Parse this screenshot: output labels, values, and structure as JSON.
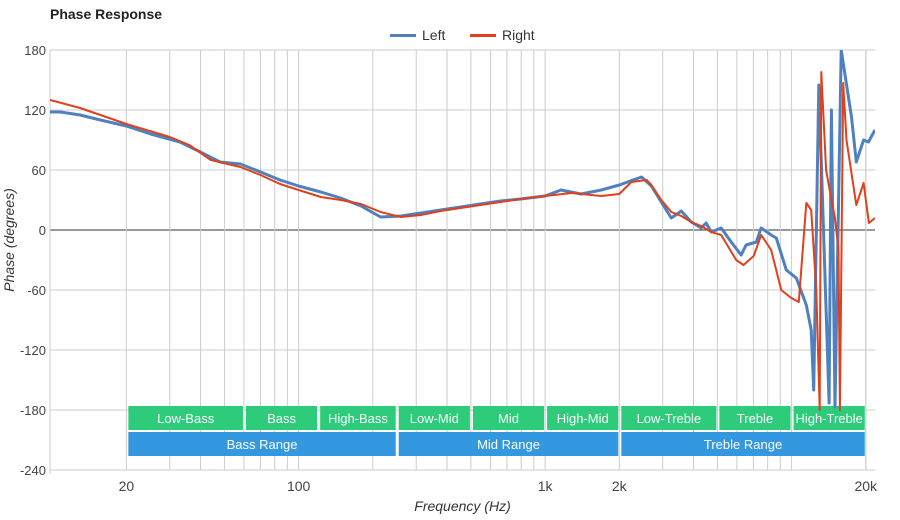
{
  "chart_data": {
    "type": "line",
    "title": "Phase Response",
    "xlabel": "Frequency (Hz)",
    "ylabel": "Phase (degrees)",
    "xscale": "log",
    "xlim": [
      9.8,
      21800
    ],
    "ylim": [
      -240,
      180
    ],
    "grid": true,
    "legend_position": "top-center",
    "x_ticks": [
      {
        "v": 20,
        "label": "20"
      },
      {
        "v": 100,
        "label": "100"
      },
      {
        "v": 1000,
        "label": "1k"
      },
      {
        "v": 2000,
        "label": "2k"
      },
      {
        "v": 20000,
        "label": "20k"
      }
    ],
    "y_ticks": [
      {
        "v": 180,
        "label": "180"
      },
      {
        "v": 120,
        "label": "120"
      },
      {
        "v": 60,
        "label": "60"
      },
      {
        "v": 0,
        "label": "0"
      },
      {
        "v": -60,
        "label": "-60"
      },
      {
        "v": -120,
        "label": "-120"
      },
      {
        "v": -180,
        "label": "-180"
      },
      {
        "v": -240,
        "label": "-240"
      }
    ],
    "series": [
      {
        "name": "Left",
        "color": "#4e81bd",
        "points": [
          [
            9.8,
            118
          ],
          [
            10.8,
            118
          ],
          [
            13,
            115
          ],
          [
            15.7,
            110
          ],
          [
            20,
            104
          ],
          [
            25.1,
            96
          ],
          [
            33,
            88
          ],
          [
            39.9,
            78
          ],
          [
            48,
            68
          ],
          [
            58,
            66
          ],
          [
            70,
            58
          ],
          [
            84,
            50
          ],
          [
            100,
            44
          ],
          [
            123,
            38
          ],
          [
            148,
            32
          ],
          [
            179,
            24
          ],
          [
            215,
            13
          ],
          [
            260,
            14
          ],
          [
            313,
            17
          ],
          [
            377,
            20
          ],
          [
            455,
            23
          ],
          [
            547,
            26
          ],
          [
            660,
            29
          ],
          [
            795,
            31
          ],
          [
            1000,
            34
          ],
          [
            1160,
            40
          ],
          [
            1400,
            36
          ],
          [
            1690,
            40
          ],
          [
            2000,
            45
          ],
          [
            2460,
            53
          ],
          [
            2700,
            44
          ],
          [
            2960,
            28
          ],
          [
            3250,
            12
          ],
          [
            3570,
            19
          ],
          [
            3920,
            8
          ],
          [
            4300,
            2
          ],
          [
            4500,
            7
          ],
          [
            4720,
            -2
          ],
          [
            5180,
            2
          ],
          [
            5690,
            -12
          ],
          [
            6240,
            -25
          ],
          [
            6540,
            -15
          ],
          [
            7190,
            -12
          ],
          [
            7530,
            2
          ],
          [
            8270,
            -5
          ],
          [
            8670,
            -8
          ],
          [
            9520,
            -40
          ],
          [
            10450,
            -48
          ],
          [
            11470,
            -75
          ],
          [
            12010,
            -100
          ],
          [
            12300,
            -160
          ],
          [
            12900,
            145
          ],
          [
            14200,
            -173
          ],
          [
            14500,
            120
          ],
          [
            15000,
            -177
          ],
          [
            15900,
            180
          ],
          [
            17500,
            113
          ],
          [
            18300,
            68
          ],
          [
            19600,
            90
          ],
          [
            20500,
            88
          ],
          [
            21800,
            100
          ]
        ]
      },
      {
        "name": "Right",
        "color": "#e0401c",
        "points": [
          [
            9.8,
            130
          ],
          [
            13,
            122
          ],
          [
            20,
            106
          ],
          [
            30,
            93
          ],
          [
            36,
            85
          ],
          [
            44,
            70
          ],
          [
            58,
            63
          ],
          [
            70,
            55
          ],
          [
            84,
            46
          ],
          [
            100,
            40
          ],
          [
            123,
            33
          ],
          [
            148,
            30
          ],
          [
            179,
            26
          ],
          [
            215,
            18
          ],
          [
            260,
            13
          ],
          [
            313,
            15
          ],
          [
            377,
            19
          ],
          [
            455,
            22
          ],
          [
            547,
            25
          ],
          [
            660,
            28
          ],
          [
            795,
            31
          ],
          [
            1000,
            34
          ],
          [
            1280,
            37
          ],
          [
            1690,
            34
          ],
          [
            2000,
            36
          ],
          [
            2240,
            48
          ],
          [
            2580,
            50
          ],
          [
            2700,
            45
          ],
          [
            2960,
            30
          ],
          [
            3250,
            18
          ],
          [
            3570,
            14
          ],
          [
            3920,
            8
          ],
          [
            4300,
            4
          ],
          [
            4720,
            -2
          ],
          [
            5180,
            -5
          ],
          [
            5960,
            -30
          ],
          [
            6380,
            -35
          ],
          [
            7020,
            -26
          ],
          [
            7530,
            -5
          ],
          [
            8270,
            -20
          ],
          [
            9080,
            -60
          ],
          [
            9970,
            -68
          ],
          [
            10700,
            -72
          ],
          [
            11470,
            27
          ],
          [
            12010,
            20
          ],
          [
            12600,
            -60
          ],
          [
            13000,
            -180
          ],
          [
            13200,
            158
          ],
          [
            13800,
            60
          ],
          [
            14500,
            30
          ],
          [
            15000,
            12
          ],
          [
            15500,
            -20
          ],
          [
            15700,
            -180
          ],
          [
            16200,
            147
          ],
          [
            16700,
            90
          ],
          [
            18300,
            25
          ],
          [
            19600,
            47
          ],
          [
            20600,
            7
          ],
          [
            21800,
            12
          ]
        ]
      }
    ],
    "bands": [
      {
        "label": "Low-Bass",
        "from": 20,
        "to": 60,
        "row": "sub"
      },
      {
        "label": "Bass",
        "from": 60,
        "to": 120,
        "row": "sub"
      },
      {
        "label": "High-Bass",
        "from": 120,
        "to": 250,
        "row": "sub"
      },
      {
        "label": "Low-Mid",
        "from": 250,
        "to": 500,
        "row": "sub"
      },
      {
        "label": "Mid",
        "from": 500,
        "to": 1000,
        "row": "sub"
      },
      {
        "label": "High-Mid",
        "from": 1000,
        "to": 2000,
        "row": "sub"
      },
      {
        "label": "Low-Treble",
        "from": 2000,
        "to": 5000,
        "row": "sub"
      },
      {
        "label": "Treble",
        "from": 5000,
        "to": 10000,
        "row": "sub"
      },
      {
        "label": "High-Treble",
        "from": 10000,
        "to": 20000,
        "row": "sub"
      },
      {
        "label": "Bass Range",
        "from": 20,
        "to": 250,
        "row": "range"
      },
      {
        "label": "Mid Range",
        "from": 250,
        "to": 2000,
        "row": "range"
      },
      {
        "label": "Treble Range",
        "from": 2000,
        "to": 20000,
        "row": "range"
      }
    ],
    "band_colors": {
      "sub": "#2ecc7a",
      "range": "#3498e0"
    }
  }
}
